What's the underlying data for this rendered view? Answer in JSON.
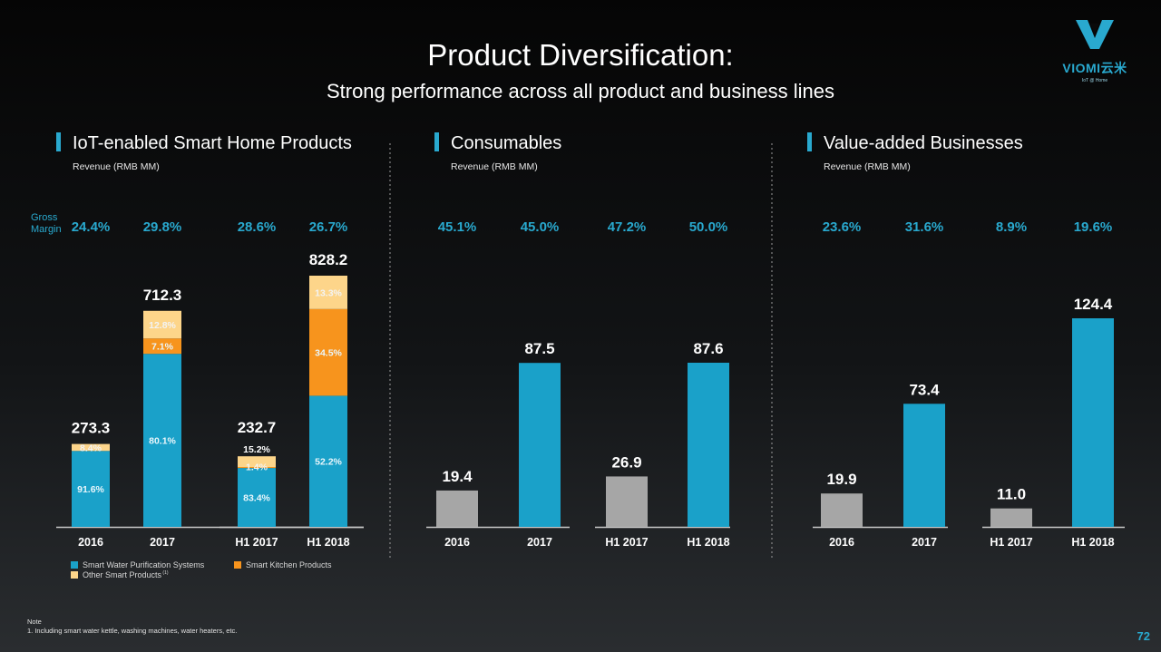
{
  "title": "Product Diversification:",
  "subtitle": "Strong performance across all product and business lines",
  "logo": {
    "name": "VIOMI云米",
    "sub": "IoT @ Home"
  },
  "page_number": "72",
  "gross_margin_label": [
    "Gross",
    "Margin"
  ],
  "note": {
    "heading": "Note",
    "text": "1. Including smart water kettle, washing machines, water heaters, etc."
  },
  "legend": [
    {
      "label": "Smart Water Purification Systems",
      "color": "#1aa1c9"
    },
    {
      "label": "Smart Kitchen Products",
      "color": "#f7941d"
    },
    {
      "label": "Other Smart Products",
      "sup": "(1)",
      "color": "#fdd58a"
    }
  ],
  "colors": {
    "teal": "#1aa1c9",
    "orange": "#f7941d",
    "yellow": "#fdd58a",
    "gray": "#a6a6a6",
    "accent": "#29a9cf"
  },
  "chart_data": [
    {
      "type": "bar",
      "stacked": true,
      "title": "IoT-enabled Smart Home Products",
      "ylabel": "Revenue (RMB MM)",
      "categories": [
        "2016",
        "2017",
        "H1 2017",
        "H1 2018"
      ],
      "totals": [
        "273.3",
        "712.3",
        "232.7",
        "828.2"
      ],
      "values": [
        273.3,
        712.3,
        232.7,
        828.2
      ],
      "gross_margin": [
        "24.4%",
        "29.8%",
        "28.6%",
        "26.7%"
      ],
      "series": [
        {
          "name": "Smart Water Purification Systems",
          "labels": [
            "91.6%",
            "80.1%",
            "83.4%",
            "52.2%"
          ],
          "shares": [
            0.916,
            0.801,
            0.834,
            0.522
          ]
        },
        {
          "name": "Smart Kitchen Products",
          "labels": [
            "",
            "7.1%",
            "1.4%",
            "34.5%"
          ],
          "shares": [
            0,
            0.071,
            0.014,
            0.345
          ]
        },
        {
          "name": "Other Smart Products",
          "labels": [
            "8.4%",
            "12.8%",
            "15.2%",
            "13.3%"
          ],
          "shares": [
            0.084,
            0.128,
            0.152,
            0.133
          ]
        }
      ]
    },
    {
      "type": "bar",
      "title": "Consumables",
      "ylabel": "Revenue (RMB MM)",
      "categories": [
        "2016",
        "2017",
        "H1 2017",
        "H1 2018"
      ],
      "labels": [
        "19.4",
        "87.5",
        "26.9",
        "87.6"
      ],
      "values": [
        19.4,
        87.5,
        26.9,
        87.6
      ],
      "gross_margin": [
        "45.1%",
        "45.0%",
        "47.2%",
        "50.0%"
      ]
    },
    {
      "type": "bar",
      "title": "Value-added Businesses",
      "ylabel": "Revenue (RMB MM)",
      "categories": [
        "2016",
        "2017",
        "H1 2017",
        "H1 2018"
      ],
      "labels": [
        "19.9",
        "73.4",
        "11.0",
        "124.4"
      ],
      "values": [
        19.9,
        73.4,
        11.0,
        124.4
      ],
      "gross_margin": [
        "23.6%",
        "31.6%",
        "8.9%",
        "19.6%"
      ]
    }
  ]
}
